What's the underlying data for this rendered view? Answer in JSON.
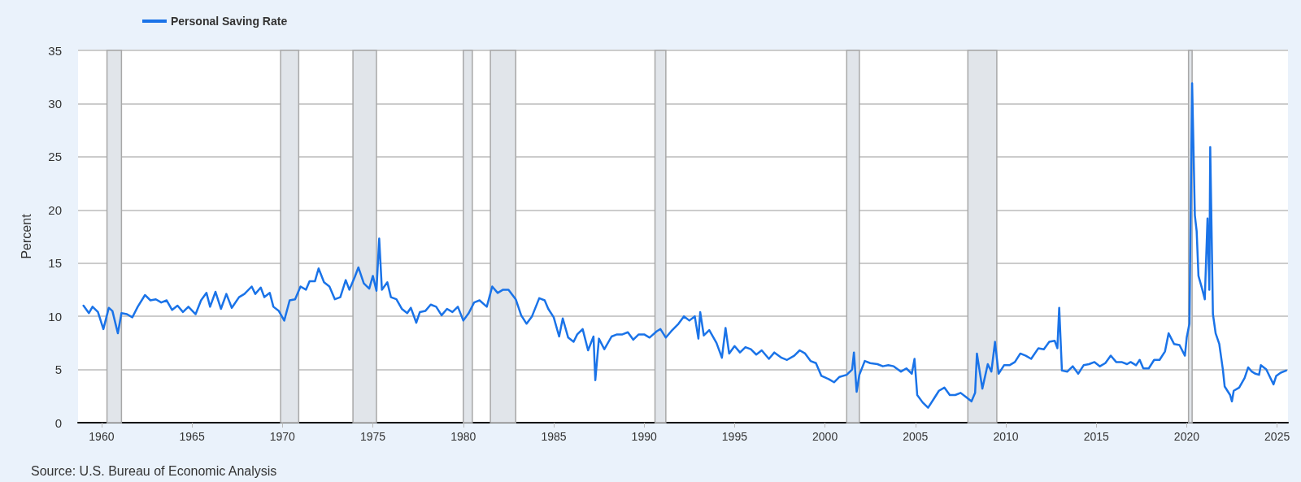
{
  "chart_data": {
    "type": "line",
    "ylabel": "Percent",
    "annotations": [
      "Source: U.S. Bureau of Economic Analysis"
    ],
    "legend": "top left",
    "grid": "y",
    "marker": "none",
    "line_style": "solid",
    "xlim": [
      1958.7,
      2025.6
    ],
    "xticks": [
      1960,
      1965,
      1970,
      1975,
      1980,
      1985,
      1990,
      1995,
      2000,
      2005,
      2010,
      2015,
      2020,
      2025
    ],
    "ylim": [
      0,
      35
    ],
    "yticks": [
      0,
      5,
      10,
      15,
      20,
      25,
      30,
      35
    ],
    "bands": [
      {
        "axis": "x",
        "from": 1960.3,
        "to": 1961.1,
        "color": "#e1e5ea"
      },
      {
        "axis": "x",
        "from": 1969.9,
        "to": 1970.9,
        "color": "#e1e5ea"
      },
      {
        "axis": "x",
        "from": 1973.9,
        "to": 1975.2,
        "color": "#e1e5ea"
      },
      {
        "axis": "x",
        "from": 1980.0,
        "to": 1980.5,
        "color": "#e1e5ea"
      },
      {
        "axis": "x",
        "from": 1981.5,
        "to": 1982.9,
        "color": "#e1e5ea"
      },
      {
        "axis": "x",
        "from": 1990.6,
        "to": 1991.2,
        "color": "#e1e5ea"
      },
      {
        "axis": "x",
        "from": 2001.2,
        "to": 2001.9,
        "color": "#e1e5ea"
      },
      {
        "axis": "x",
        "from": 2007.9,
        "to": 2009.5,
        "color": "#e1e5ea"
      },
      {
        "axis": "x",
        "from": 2020.1,
        "to": 2020.3,
        "color": "#e1e5ea"
      }
    ],
    "series": [
      {
        "name": "Personal Saving Rate",
        "color": "#1a73e8",
        "x": [
          1959.0,
          1959.3,
          1959.5,
          1959.8,
          1960.1,
          1960.4,
          1960.6,
          1960.9,
          1961.1,
          1961.4,
          1961.7,
          1962.0,
          1962.4,
          1962.7,
          1963.0,
          1963.3,
          1963.6,
          1963.9,
          1964.2,
          1964.5,
          1964.8,
          1965.2,
          1965.5,
          1965.8,
          1966.0,
          1966.3,
          1966.6,
          1966.9,
          1967.2,
          1967.6,
          1967.9,
          1968.3,
          1968.5,
          1968.8,
          1969.0,
          1969.3,
          1969.5,
          1969.8,
          1970.1,
          1970.4,
          1970.7,
          1971.0,
          1971.3,
          1971.5,
          1971.8,
          1972.0,
          1972.3,
          1972.6,
          1972.9,
          1973.2,
          1973.5,
          1973.7,
          1974.0,
          1974.2,
          1974.5,
          1974.8,
          1975.0,
          1975.2,
          1975.35,
          1975.5,
          1975.8,
          1976.0,
          1976.3,
          1976.6,
          1976.9,
          1977.1,
          1977.4,
          1977.6,
          1977.9,
          1978.2,
          1978.5,
          1978.8,
          1979.1,
          1979.4,
          1979.7,
          1980.0,
          1980.3,
          1980.6,
          1980.9,
          1981.3,
          1981.6,
          1981.9,
          1982.2,
          1982.5,
          1982.9,
          1983.2,
          1983.5,
          1983.8,
          1984.2,
          1984.5,
          1984.7,
          1985.0,
          1985.3,
          1985.5,
          1985.8,
          1986.1,
          1986.3,
          1986.6,
          1986.9,
          1987.2,
          1987.3,
          1987.5,
          1987.8,
          1988.2,
          1988.5,
          1988.8,
          1989.1,
          1989.4,
          1989.7,
          1990.0,
          1990.3,
          1990.7,
          1990.9,
          1991.2,
          1991.5,
          1991.9,
          1992.2,
          1992.5,
          1992.8,
          1993.0,
          1993.1,
          1993.3,
          1993.6,
          1994.0,
          1994.3,
          1994.5,
          1994.7,
          1995.0,
          1995.3,
          1995.6,
          1995.9,
          1996.2,
          1996.5,
          1996.9,
          1997.2,
          1997.6,
          1997.9,
          1998.3,
          1998.6,
          1998.9,
          1999.2,
          1999.5,
          1999.8,
          2000.2,
          2000.5,
          2000.8,
          2001.2,
          2001.5,
          2001.6,
          2001.75,
          2001.9,
          2002.2,
          2002.5,
          2002.9,
          2003.2,
          2003.5,
          2003.8,
          2004.2,
          2004.5,
          2004.8,
          2004.95,
          2005.1,
          2005.4,
          2005.7,
          2006.0,
          2006.3,
          2006.6,
          2006.9,
          2007.2,
          2007.5,
          2007.8,
          2008.1,
          2008.3,
          2008.4,
          2008.7,
          2009.0,
          2009.2,
          2009.4,
          2009.6,
          2009.9,
          2010.2,
          2010.5,
          2010.8,
          2011.1,
          2011.4,
          2011.8,
          2012.1,
          2012.4,
          2012.7,
          2012.85,
          2012.95,
          2013.1,
          2013.4,
          2013.7,
          2014.0,
          2014.3,
          2014.6,
          2014.9,
          2015.2,
          2015.5,
          2015.8,
          2016.1,
          2016.4,
          2016.7,
          2016.9,
          2017.2,
          2017.4,
          2017.6,
          2017.9,
          2018.2,
          2018.5,
          2018.8,
          2019.0,
          2019.3,
          2019.6,
          2019.9,
          2020.0,
          2020.15,
          2020.3,
          2020.45,
          2020.55,
          2020.65,
          2020.85,
          2021.0,
          2021.15,
          2021.25,
          2021.3,
          2021.45,
          2021.6,
          2021.8,
          2022.0,
          2022.1,
          2022.4,
          2022.5,
          2022.6,
          2022.9,
          2023.2,
          2023.4,
          2023.6,
          2023.8,
          2024.0,
          2024.1,
          2024.4,
          2024.6,
          2024.8,
          2024.95,
          2025.2,
          2025.5
        ],
        "values": [
          11.0,
          10.3,
          10.9,
          10.4,
          8.8,
          10.8,
          10.5,
          8.4,
          10.3,
          10.2,
          9.9,
          10.9,
          12.0,
          11.5,
          11.6,
          11.3,
          11.5,
          10.6,
          11.0,
          10.4,
          10.9,
          10.2,
          11.5,
          12.2,
          10.9,
          12.3,
          10.7,
          12.1,
          10.8,
          11.8,
          12.1,
          12.8,
          12.1,
          12.7,
          11.8,
          12.2,
          10.9,
          10.5,
          9.6,
          11.5,
          11.6,
          12.8,
          12.5,
          13.3,
          13.3,
          14.5,
          13.2,
          12.8,
          11.6,
          11.8,
          13.4,
          12.5,
          13.7,
          14.6,
          13.1,
          12.6,
          13.8,
          12.4,
          17.3,
          12.5,
          13.2,
          11.8,
          11.6,
          10.7,
          10.3,
          10.8,
          9.4,
          10.4,
          10.5,
          11.1,
          10.9,
          10.1,
          10.7,
          10.4,
          10.9,
          9.6,
          10.3,
          11.3,
          11.5,
          10.9,
          12.8,
          12.2,
          12.5,
          12.5,
          11.6,
          10.1,
          9.3,
          10.0,
          11.7,
          11.5,
          10.7,
          9.9,
          8.1,
          9.8,
          8.0,
          7.6,
          8.3,
          8.8,
          6.8,
          8.1,
          4.0,
          7.9,
          6.9,
          8.1,
          8.3,
          8.3,
          8.5,
          7.8,
          8.3,
          8.3,
          8.0,
          8.6,
          8.8,
          8.0,
          8.6,
          9.3,
          10.0,
          9.6,
          10.0,
          7.9,
          10.4,
          8.2,
          8.7,
          7.5,
          6.1,
          8.9,
          6.5,
          7.2,
          6.6,
          7.1,
          6.9,
          6.4,
          6.8,
          6.0,
          6.6,
          6.1,
          5.9,
          6.3,
          6.8,
          6.5,
          5.8,
          5.6,
          4.4,
          4.1,
          3.8,
          4.3,
          4.5,
          5.0,
          6.6,
          2.9,
          4.5,
          5.8,
          5.6,
          5.5,
          5.3,
          5.4,
          5.3,
          4.8,
          5.1,
          4.6,
          6.0,
          2.6,
          1.9,
          1.4,
          2.2,
          3.0,
          3.3,
          2.6,
          2.6,
          2.8,
          2.4,
          2.0,
          2.8,
          6.5,
          3.2,
          5.5,
          4.8,
          7.6,
          4.6,
          5.4,
          5.4,
          5.7,
          6.5,
          6.3,
          6.0,
          7.0,
          6.9,
          7.6,
          7.7,
          7.0,
          10.8,
          4.9,
          4.8,
          5.3,
          4.6,
          5.4,
          5.5,
          5.7,
          5.3,
          5.6,
          6.3,
          5.7,
          5.7,
          5.5,
          5.7,
          5.4,
          5.9,
          5.1,
          5.1,
          5.9,
          5.9,
          6.7,
          8.4,
          7.4,
          7.3,
          6.3,
          8.0,
          9.3,
          31.9,
          19.5,
          18.0,
          13.8,
          12.6,
          11.6,
          19.2,
          12.5,
          25.9,
          10.2,
          8.4,
          7.4,
          5.0,
          3.4,
          2.6,
          2.0,
          3.0,
          3.3,
          4.2,
          5.2,
          4.8,
          4.6,
          4.5,
          5.4,
          5.0,
          4.3,
          3.6,
          4.4,
          4.7,
          4.9
        ]
      }
    ]
  }
}
